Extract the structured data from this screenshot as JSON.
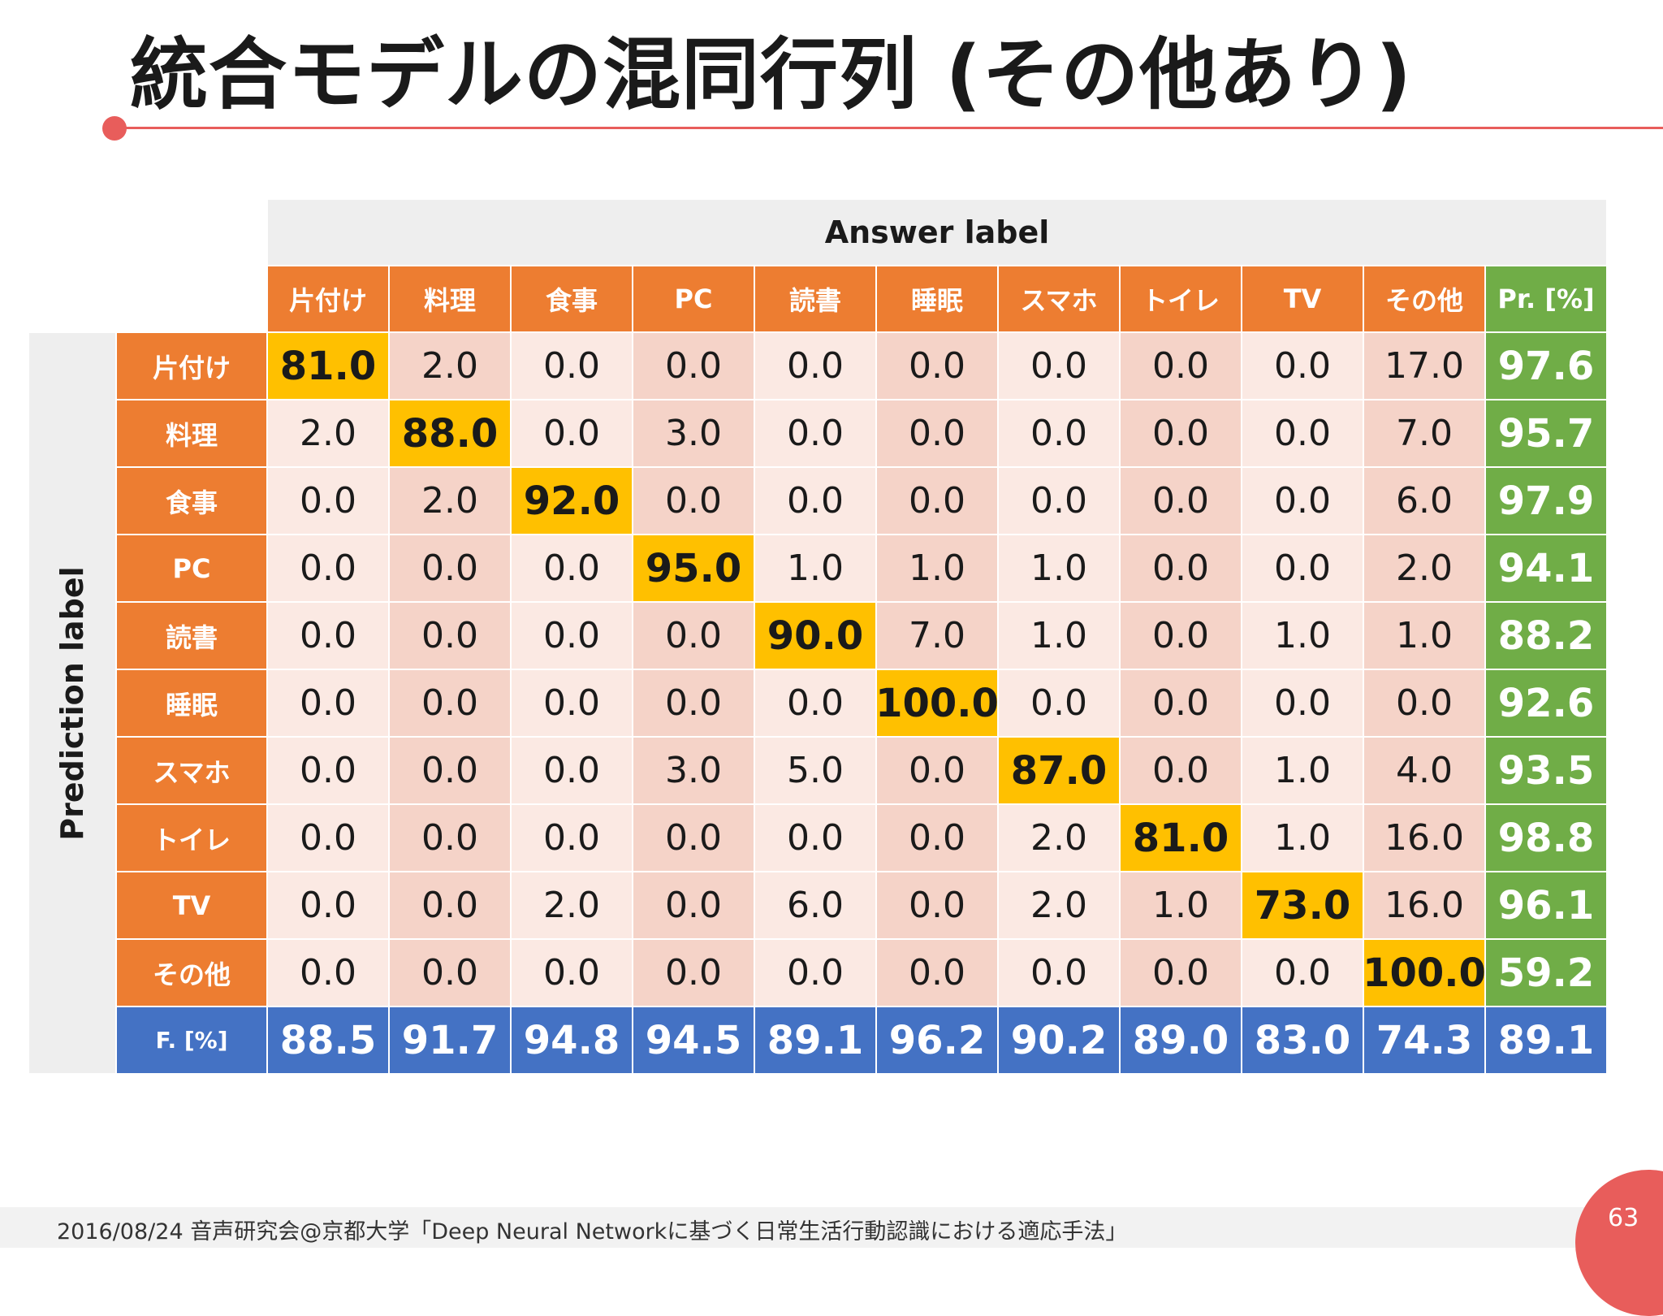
{
  "slide": {
    "title": "統合モデルの混同行列 (その他あり)",
    "answer_label": "Answer label",
    "prediction_label": "Prediction label",
    "footer": "2016/08/24  音声研究会@京都大学「Deep Neural Networkに基づく日常生活行動認識における適応手法」",
    "page_number": "63"
  },
  "colors": {
    "accent": "#e85d5b",
    "header_orange": "#ed7d31",
    "precision_green": "#70ad47",
    "fscore_blue": "#4472c4",
    "diagonal_yellow": "#ffc000",
    "cell_light": "#fbe9e3",
    "cell_dark": "#f5d3c8"
  },
  "table": {
    "columns": [
      "片付け",
      "料理",
      "食事",
      "PC",
      "読書",
      "睡眠",
      "スマホ",
      "トイレ",
      "TV",
      "その他"
    ],
    "precision_header": "Pr. [%]",
    "fscore_header": "F. [%]",
    "rows": [
      {
        "label": "片付け",
        "values": [
          "81.0",
          "2.0",
          "0.0",
          "0.0",
          "0.0",
          "0.0",
          "0.0",
          "0.0",
          "0.0",
          "17.0"
        ],
        "precision": "97.6"
      },
      {
        "label": "料理",
        "values": [
          "2.0",
          "88.0",
          "0.0",
          "3.0",
          "0.0",
          "0.0",
          "0.0",
          "0.0",
          "0.0",
          "7.0"
        ],
        "precision": "95.7"
      },
      {
        "label": "食事",
        "values": [
          "0.0",
          "2.0",
          "92.0",
          "0.0",
          "0.0",
          "0.0",
          "0.0",
          "0.0",
          "0.0",
          "6.0"
        ],
        "precision": "97.9"
      },
      {
        "label": "PC",
        "values": [
          "0.0",
          "0.0",
          "0.0",
          "95.0",
          "1.0",
          "1.0",
          "1.0",
          "0.0",
          "0.0",
          "2.0"
        ],
        "precision": "94.1"
      },
      {
        "label": "読書",
        "values": [
          "0.0",
          "0.0",
          "0.0",
          "0.0",
          "90.0",
          "7.0",
          "1.0",
          "0.0",
          "1.0",
          "1.0"
        ],
        "precision": "88.2"
      },
      {
        "label": "睡眠",
        "values": [
          "0.0",
          "0.0",
          "0.0",
          "0.0",
          "0.0",
          "100.0",
          "0.0",
          "0.0",
          "0.0",
          "0.0"
        ],
        "precision": "92.6"
      },
      {
        "label": "スマホ",
        "values": [
          "0.0",
          "0.0",
          "0.0",
          "3.0",
          "5.0",
          "0.0",
          "87.0",
          "0.0",
          "1.0",
          "4.0"
        ],
        "precision": "93.5"
      },
      {
        "label": "トイレ",
        "values": [
          "0.0",
          "0.0",
          "0.0",
          "0.0",
          "0.0",
          "0.0",
          "2.0",
          "81.0",
          "1.0",
          "16.0"
        ],
        "precision": "98.8"
      },
      {
        "label": "TV",
        "values": [
          "0.0",
          "0.0",
          "2.0",
          "0.0",
          "6.0",
          "0.0",
          "2.0",
          "1.0",
          "73.0",
          "16.0"
        ],
        "precision": "96.1"
      },
      {
        "label": "その他",
        "values": [
          "0.0",
          "0.0",
          "0.0",
          "0.0",
          "0.0",
          "0.0",
          "0.0",
          "0.0",
          "0.0",
          "100.0"
        ],
        "precision": "59.2"
      }
    ],
    "fscores": [
      "88.5",
      "91.7",
      "94.8",
      "94.5",
      "89.1",
      "96.2",
      "90.2",
      "89.0",
      "83.0",
      "74.3"
    ],
    "overall_fscore": "89.1"
  }
}
